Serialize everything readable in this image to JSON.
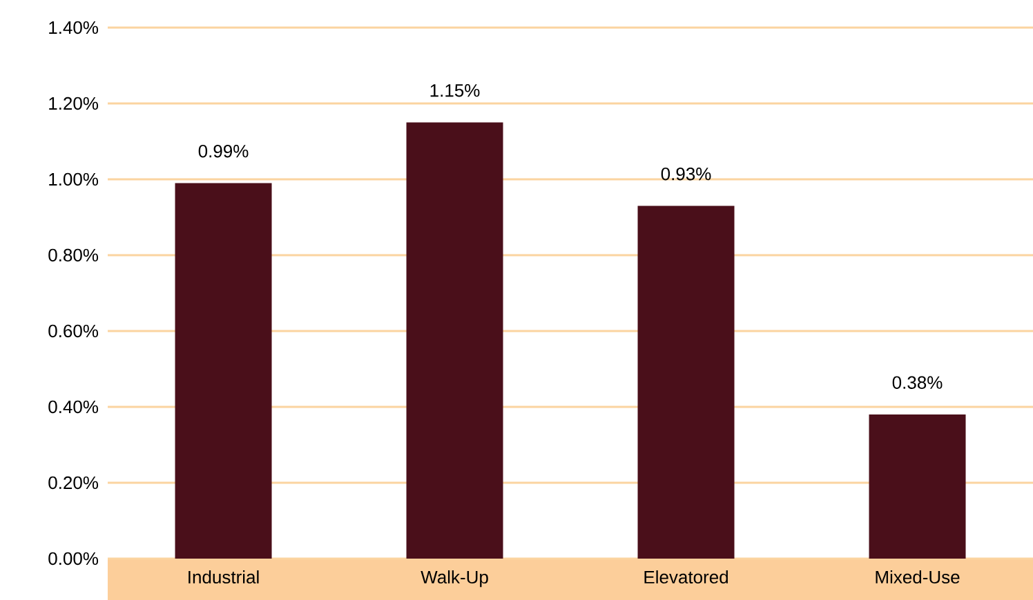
{
  "chart_data": {
    "type": "bar",
    "categories": [
      "Industrial",
      "Walk-Up",
      "Elevatored",
      "Mixed-Use"
    ],
    "values": [
      0.99,
      1.15,
      0.93,
      0.38
    ],
    "value_labels": [
      "0.99%",
      "1.15%",
      "0.93%",
      "0.38%"
    ],
    "color": "#4a0f1a",
    "ylim": [
      0,
      1.4
    ],
    "yticks": [
      {
        "value": 0,
        "label": "0.00%"
      },
      {
        "value": 0.2,
        "label": "0.20%"
      },
      {
        "value": 0.4,
        "label": "0.40%"
      },
      {
        "value": 0.6,
        "label": "0.60%"
      },
      {
        "value": 0.8,
        "label": "0.80%"
      },
      {
        "value": 1.0,
        "label": "1.00%"
      },
      {
        "value": 1.2,
        "label": "1.20%"
      },
      {
        "value": 1.4,
        "label": "1.40%"
      }
    ],
    "grid": "y"
  }
}
